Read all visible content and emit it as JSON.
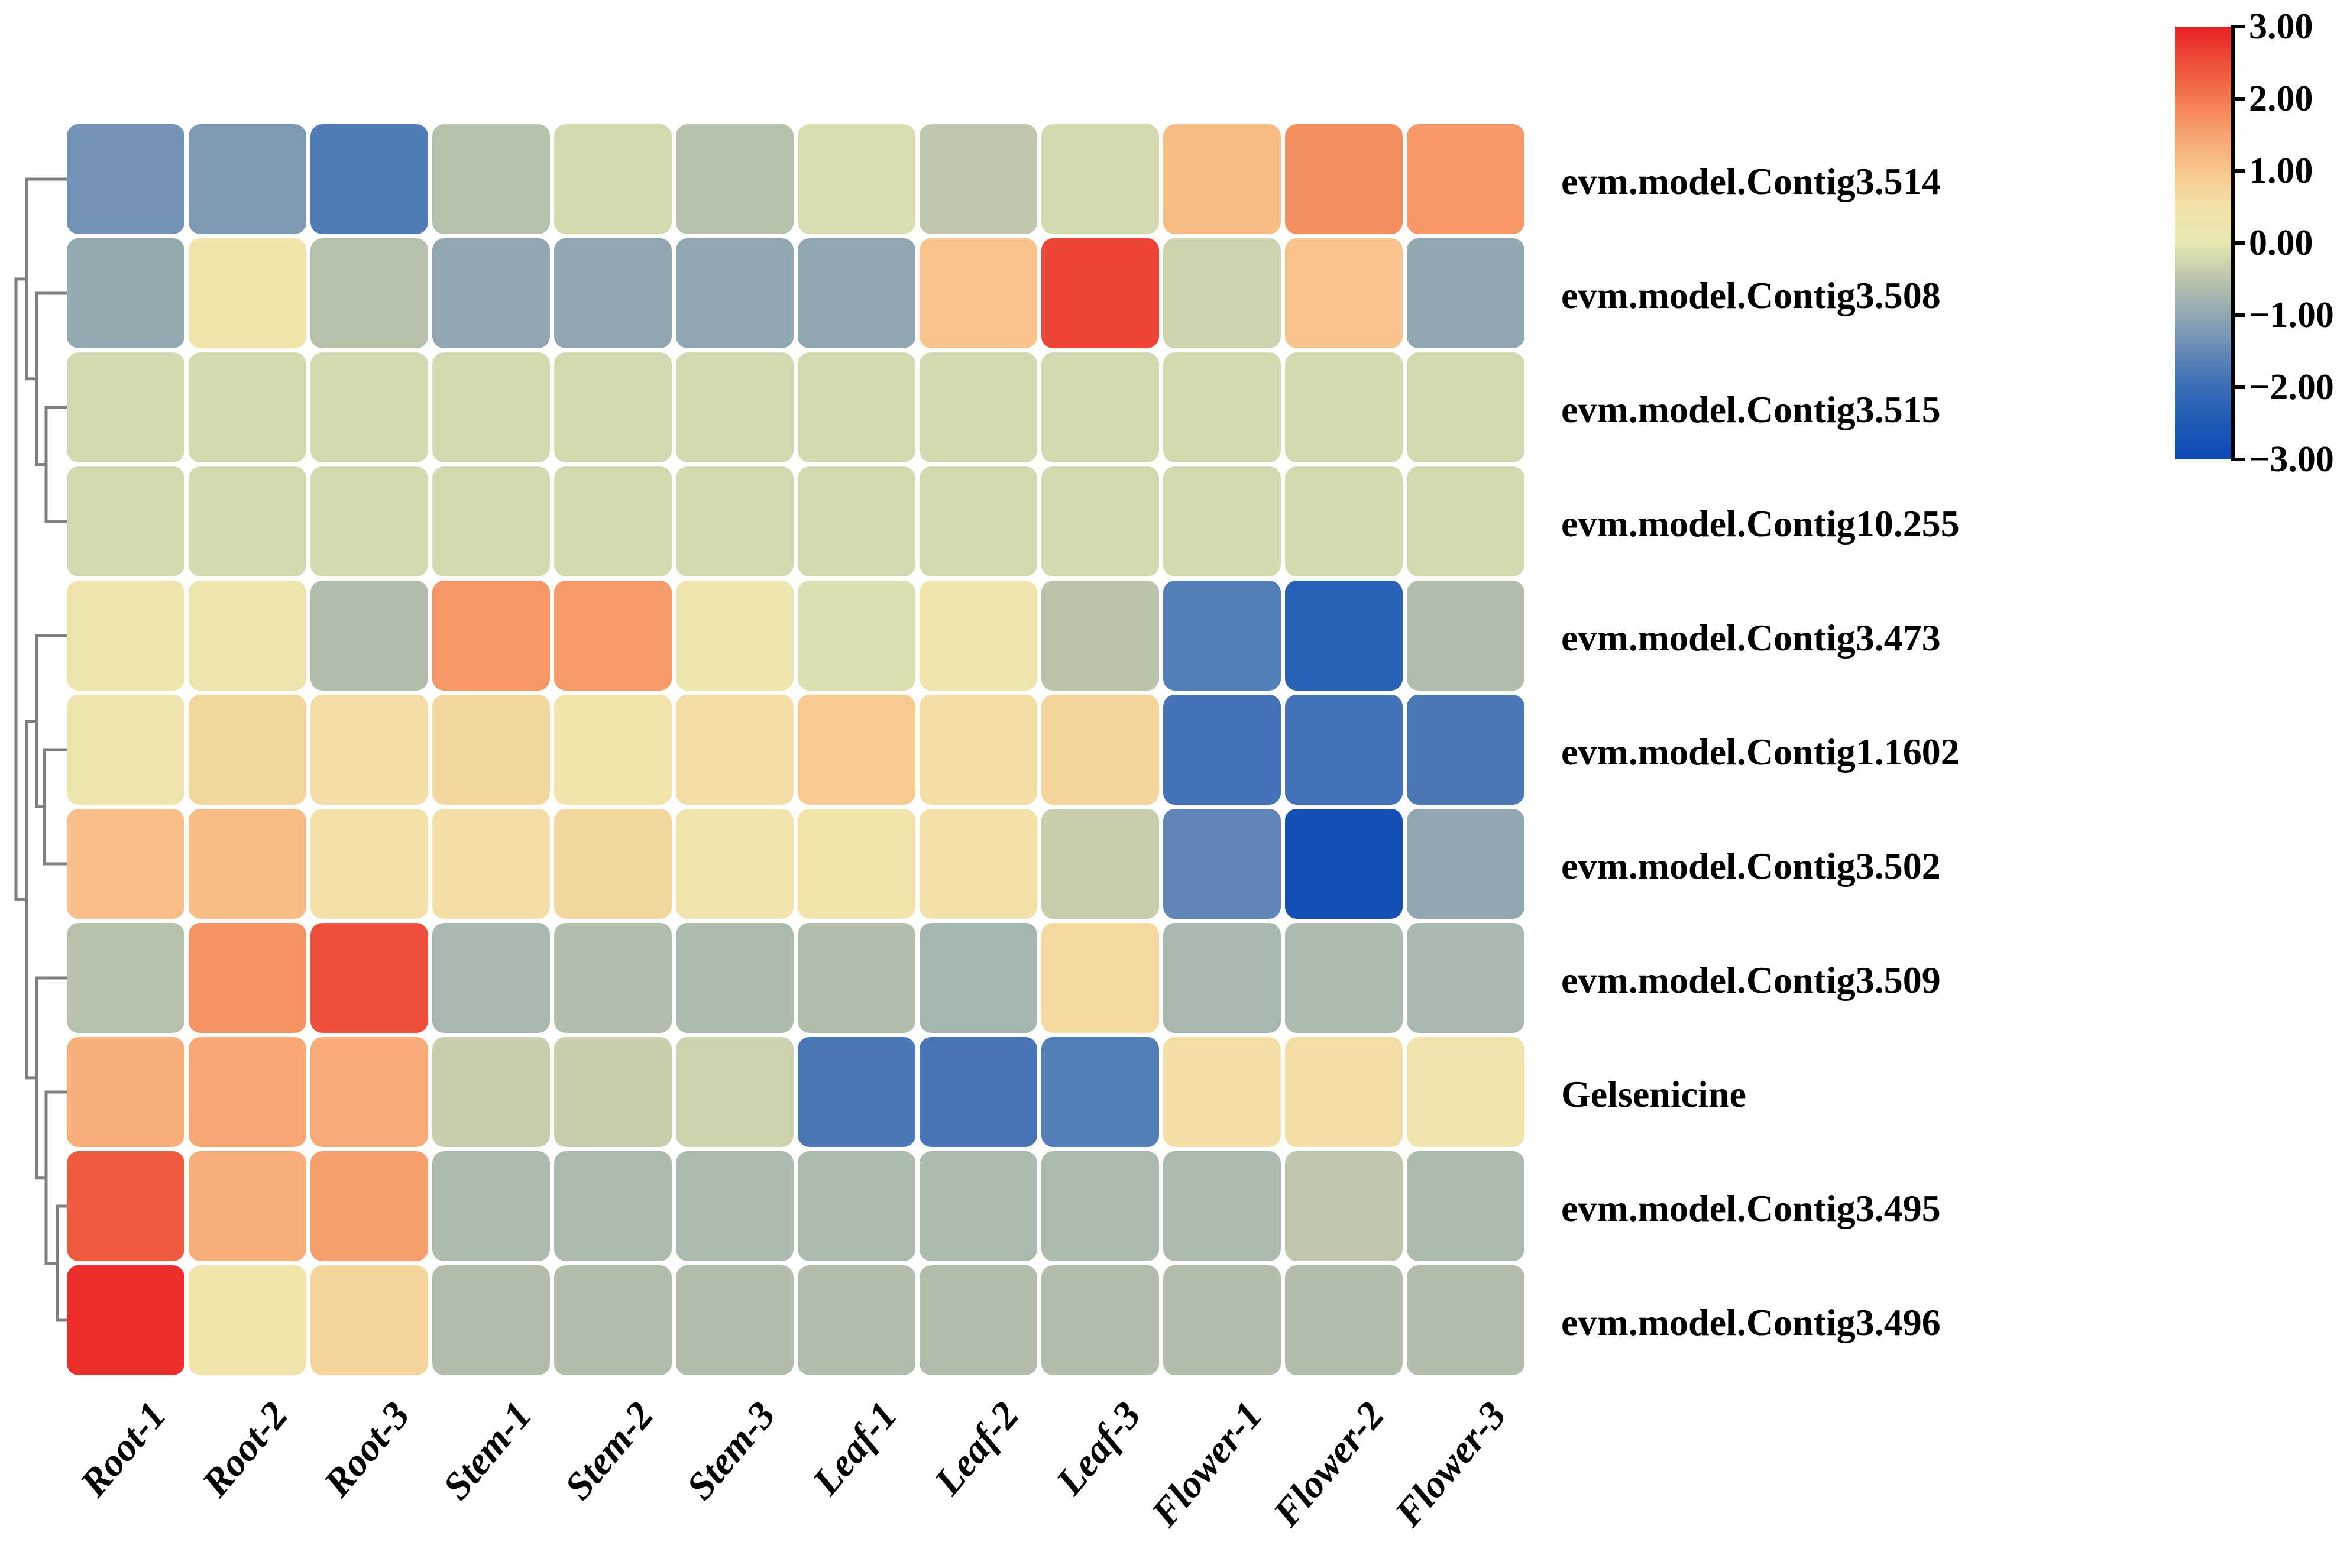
{
  "figure": {
    "background_color": "#ffffff",
    "dendrogram_line_color": "#7f7f7f",
    "cell_gap_color": "#ffffff",
    "tick_color": "#000000"
  },
  "chart_data": {
    "type": "heatmap",
    "title": "",
    "xlabel": "",
    "ylabel": "",
    "legend_position": "top-right colorbar",
    "grid": false,
    "columns": [
      "Root-1",
      "Root-2",
      "Root-3",
      "Stem-1",
      "Stem-2",
      "Stem-3",
      "Leaf-1",
      "Leaf-2",
      "Leaf-3",
      "Flower-1",
      "Flower-2",
      "Flower-3"
    ],
    "rows": [
      "evm.model.Contig3.514",
      "evm.model.Contig3.508",
      "evm.model.Contig3.515",
      "evm.model.Contig10.255",
      "evm.model.Contig3.473",
      "evm.model.Contig1.1602",
      "evm.model.Contig3.502",
      "evm.model.Contig3.509",
      "Gelsenicine",
      "evm.model.Contig3.495",
      "evm.model.Contig3.496"
    ],
    "values": [
      [
        -1.35,
        -1.2,
        -1.75,
        -0.55,
        -0.2,
        -0.55,
        -0.15,
        -0.45,
        -0.2,
        1.15,
        1.75,
        1.65
      ],
      [
        -0.95,
        0.45,
        -0.55,
        -1.0,
        -1.0,
        -1.0,
        -1.0,
        1.05,
        2.6,
        -0.3,
        1.05,
        -1.0
      ],
      [
        -0.2,
        -0.2,
        -0.2,
        -0.2,
        -0.2,
        -0.2,
        -0.2,
        -0.2,
        -0.2,
        -0.2,
        -0.2,
        -0.2
      ],
      [
        -0.2,
        -0.2,
        -0.2,
        -0.2,
        -0.2,
        -0.2,
        -0.2,
        -0.2,
        -0.2,
        -0.2,
        -0.2,
        -0.2
      ],
      [
        0.35,
        0.3,
        -0.6,
        1.65,
        1.6,
        0.25,
        -0.1,
        0.35,
        -0.5,
        -1.7,
        -2.3,
        -0.6
      ],
      [
        0.3,
        0.7,
        0.6,
        0.7,
        0.45,
        0.6,
        0.95,
        0.55,
        0.75,
        -1.9,
        -1.9,
        -1.8
      ],
      [
        1.1,
        1.15,
        0.5,
        0.55,
        0.7,
        0.4,
        0.45,
        0.5,
        -0.35,
        -1.55,
        -2.8,
        -1.0
      ],
      [
        -0.55,
        1.7,
        2.5,
        -0.7,
        -0.6,
        -0.65,
        -0.6,
        -0.75,
        0.65,
        -0.7,
        -0.65,
        -0.7
      ],
      [
        1.35,
        1.45,
        1.4,
        -0.35,
        -0.35,
        -0.3,
        -1.8,
        -1.85,
        -1.7,
        0.55,
        0.55,
        0.4
      ],
      [
        2.35,
        1.35,
        1.55,
        -0.65,
        -0.65,
        -0.65,
        -0.65,
        -0.65,
        -0.65,
        -0.65,
        -0.45,
        -0.65
      ],
      [
        2.85,
        0.45,
        0.75,
        -0.6,
        -0.6,
        -0.6,
        -0.6,
        -0.6,
        -0.6,
        -0.6,
        -0.6,
        -0.6
      ]
    ],
    "zlim": [
      -3,
      3
    ],
    "colorbar": {
      "tick_labels": [
        "3.00",
        "2.00",
        "1.00",
        "0.00",
        "−1.00",
        "−2.00",
        "−3.00"
      ],
      "tick_values": [
        3,
        2,
        1,
        0,
        -1,
        -2,
        -3
      ]
    },
    "colormap_stops": [
      {
        "z": -3.0,
        "color": "#0c49b5"
      },
      {
        "z": -2.5,
        "color": "#1e5ab4"
      },
      {
        "z": -2.0,
        "color": "#3a6db5"
      },
      {
        "z": -1.5,
        "color": "#6589b8"
      },
      {
        "z": -1.0,
        "color": "#90a7b2"
      },
      {
        "z": -0.5,
        "color": "#bac4ab"
      },
      {
        "z": 0.0,
        "color": "#e7e7b2"
      },
      {
        "z": 0.5,
        "color": "#f2e2a9"
      },
      {
        "z": 1.0,
        "color": "#f8c78e"
      },
      {
        "z": 1.5,
        "color": "#f7a471"
      },
      {
        "z": 2.0,
        "color": "#f3794f"
      },
      {
        "z": 2.5,
        "color": "#ee4f3a"
      },
      {
        "z": 3.0,
        "color": "#e92025"
      }
    ],
    "row_dendrogram": {
      "leaf_order": "top-to-bottom matches rows",
      "joins": [
        {
          "id": "N0",
          "a": "L2",
          "b": "L3",
          "x": 78
        },
        {
          "id": "N1",
          "a": "L1",
          "b": "N0",
          "x": 62
        },
        {
          "id": "N2",
          "a": "L0",
          "b": "N1",
          "x": 45
        },
        {
          "id": "N3",
          "a": "L5",
          "b": "L6",
          "x": 75
        },
        {
          "id": "N4",
          "a": "L4",
          "b": "N3",
          "x": 62
        },
        {
          "id": "N5",
          "a": "L9",
          "b": "L10",
          "x": 97
        },
        {
          "id": "N6",
          "a": "L8",
          "b": "N5",
          "x": 78
        },
        {
          "id": "N7",
          "a": "L7",
          "b": "N6",
          "x": 62
        },
        {
          "id": "N8",
          "a": "N4",
          "b": "N7",
          "x": 45
        },
        {
          "id": "N9",
          "a": "N2",
          "b": "N8",
          "x": 27
        }
      ]
    }
  }
}
